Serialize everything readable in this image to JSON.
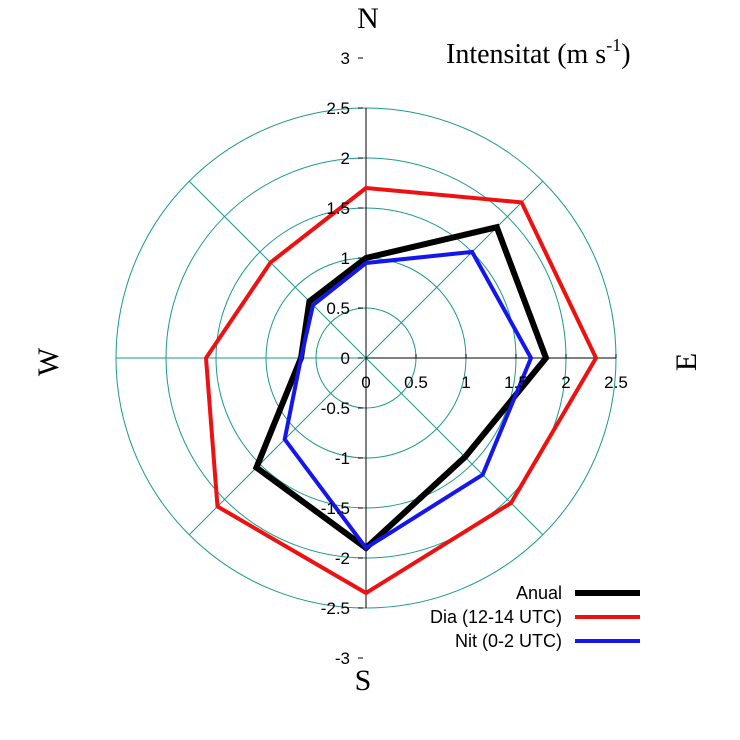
{
  "chart_data": {
    "type": "radar",
    "title_main": "Intensitat (m s",
    "title_sup": "-1",
    "title_end": ")",
    "directions": [
      "N",
      "NE",
      "E",
      "SE",
      "S",
      "SW",
      "W",
      "NW"
    ],
    "compass_labels": {
      "north": "N",
      "east": "E",
      "south": "S",
      "west": "W"
    },
    "rlim": [
      0,
      2.5
    ],
    "circle_values": [
      0.5,
      1,
      1.5,
      2,
      2.5
    ],
    "x_tick_labels": [
      "0",
      "0.5",
      "1",
      "1.5",
      "2",
      "2.5"
    ],
    "x_tick_values": [
      0,
      0.5,
      1,
      1.5,
      2,
      2.5
    ],
    "y_tick_labels": [
      "3",
      "2.5",
      "2",
      "1.5",
      "1",
      "0.5",
      "0",
      "-0.5",
      "-1",
      "-1.5",
      "-2",
      "-2.5",
      "-3"
    ],
    "y_tick_values": [
      3,
      2.5,
      2,
      1.5,
      1,
      0.5,
      0,
      -0.5,
      -1,
      -1.5,
      -2,
      -2.5,
      -3
    ],
    "legend_position": "bottom-right",
    "series": [
      {
        "name": "Anual",
        "color": "#000000",
        "width": 6,
        "values": [
          1.0,
          1.85,
          1.8,
          1.4,
          1.9,
          1.55,
          0.65,
          0.8
        ]
      },
      {
        "name": "Dia (12-14 UTC)",
        "color": "#ee1111",
        "width": 4,
        "values": [
          1.7,
          2.2,
          2.3,
          2.05,
          2.35,
          2.1,
          1.6,
          1.35
        ]
      },
      {
        "name": "Nit (0-2 UTC)",
        "color": "#1515ee",
        "width": 4,
        "values": [
          0.95,
          1.5,
          1.65,
          1.65,
          1.9,
          1.15,
          0.65,
          0.75
        ]
      }
    ]
  }
}
